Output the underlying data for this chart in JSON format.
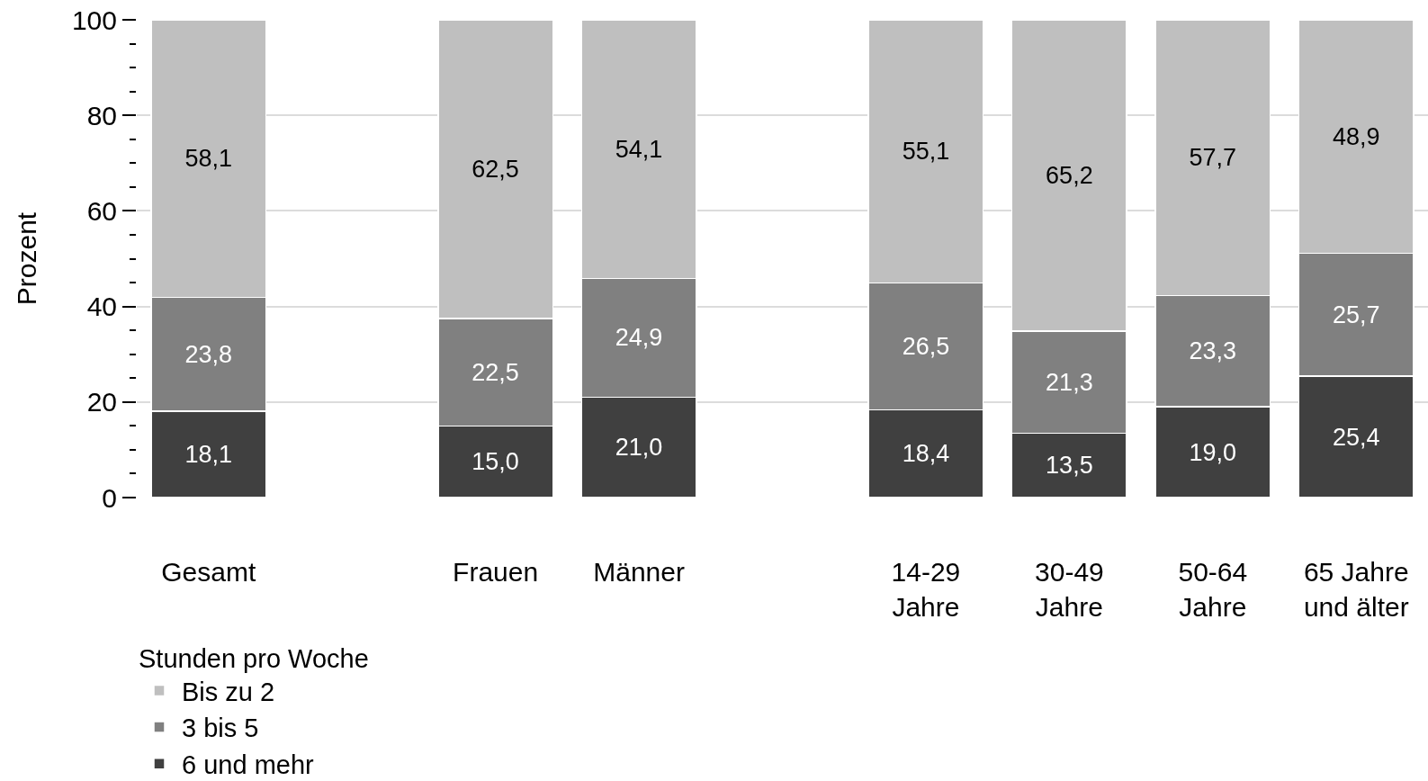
{
  "chart_data": {
    "type": "bar",
    "stacked": true,
    "ylabel": "Prozent",
    "legend_title": "Stunden pro Woche",
    "categories": [
      "Gesamt",
      null,
      "Frauen",
      "Männer",
      null,
      "14-29 Jahre",
      "30-49 Jahre",
      "50-64 Jahre",
      "65 Jahre und älter"
    ],
    "series": [
      {
        "name": "6 und mehr",
        "color": "#404040",
        "values": [
          18.1,
          null,
          15.0,
          21.0,
          null,
          18.4,
          13.5,
          19.0,
          25.4
        ],
        "value_labels": [
          "18,1",
          null,
          "15,0",
          "21,0",
          null,
          "18,4",
          "13,5",
          "19,0",
          "25,4"
        ]
      },
      {
        "name": "3 bis 5",
        "color": "#808080",
        "values": [
          23.8,
          null,
          22.5,
          24.9,
          null,
          26.5,
          21.3,
          23.3,
          25.7
        ],
        "value_labels": [
          "23,8",
          null,
          "22,5",
          "24,9",
          null,
          "26,5",
          "21,3",
          "23,3",
          "25,7"
        ]
      },
      {
        "name": "Bis zu 2",
        "color": "#bfbfbf",
        "values": [
          58.1,
          null,
          62.5,
          54.1,
          null,
          55.1,
          65.2,
          57.7,
          48.9
        ],
        "value_labels": [
          "58,1",
          null,
          "62,5",
          "54,1",
          null,
          "55,1",
          "65,2",
          "57,7",
          "48,9"
        ]
      }
    ],
    "ylim": [
      0,
      100
    ],
    "yticks": [
      0,
      20,
      40,
      60,
      80,
      100,
      {
        "value": 5,
        "label": null
      },
      {
        "value": 10,
        "label": null
      },
      {
        "value": 15,
        "label": null
      },
      {
        "value": 25,
        "label": null
      },
      {
        "value": 30,
        "label": null
      },
      {
        "value": 35,
        "label": null
      },
      {
        "value": 45,
        "label": null
      },
      {
        "value": 50,
        "label": null
      },
      {
        "value": 55,
        "label": null
      },
      {
        "value": 65,
        "label": null
      },
      {
        "value": 70,
        "label": null
      },
      {
        "value": 75,
        "label": null
      },
      {
        "value": 85,
        "label": null
      },
      {
        "value": 90,
        "label": null
      },
      {
        "value": 95,
        "label": null
      }
    ],
    "grid": "y",
    "legend": "bottom left"
  }
}
